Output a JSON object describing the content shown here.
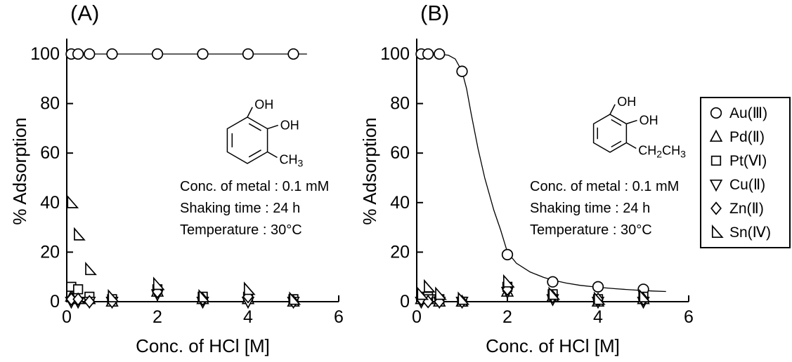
{
  "chart_data": [
    {
      "type": "scatter",
      "panel_label": "(A)",
      "xlabel": "Conc. of HCl [M]",
      "ylabel": "% Adsorption",
      "xlim": [
        0,
        6
      ],
      "ylim": [
        0,
        100
      ],
      "xticks": [
        0,
        2,
        4,
        6
      ],
      "yticks": [
        0,
        20,
        40,
        60,
        80,
        100
      ],
      "grid": false,
      "legend_position": "outside-right",
      "annotations": [
        "Conc. of metal : 0.1 mM",
        "Shaking time : 24 h",
        "Temperature : 30°C"
      ],
      "structure": {
        "substituents": [
          "OH",
          "OH",
          "CH3"
        ]
      },
      "x": [
        0.1,
        0.25,
        0.5,
        1,
        2,
        3,
        4,
        5
      ],
      "series": [
        {
          "name": "Au(Ⅲ)",
          "marker": "circle",
          "y": [
            100,
            100,
            100,
            100,
            100,
            100,
            100,
            100
          ],
          "fit_line": {
            "x": [
              0,
              5.3
            ],
            "y": [
              100,
              100
            ]
          }
        },
        {
          "name": "Pd(Ⅱ)",
          "marker": "triangle-up",
          "y": [
            2,
            1,
            1,
            0,
            4,
            1,
            1,
            0
          ]
        },
        {
          "name": "Pt(Ⅵ)",
          "marker": "square",
          "y": [
            6,
            5,
            2,
            1,
            5,
            2,
            2,
            1
          ]
        },
        {
          "name": "Cu(Ⅱ)",
          "marker": "triangle-down",
          "y": [
            0,
            0,
            0,
            0,
            3,
            0,
            0,
            0
          ]
        },
        {
          "name": "Zn(Ⅱ)",
          "marker": "diamond",
          "y": [
            1,
            1,
            0,
            0,
            4,
            1,
            2,
            0
          ]
        },
        {
          "name": "Sn(Ⅳ)",
          "marker": "triangle-right",
          "y": [
            40,
            27,
            13,
            2,
            7,
            2,
            5,
            1
          ]
        }
      ]
    },
    {
      "type": "scatter",
      "panel_label": "(B)",
      "xlabel": "Conc. of HCl [M]",
      "ylabel": "% Adsorption",
      "xlim": [
        0,
        6
      ],
      "ylim": [
        0,
        100
      ],
      "xticks": [
        0,
        2,
        4,
        6
      ],
      "yticks": [
        0,
        20,
        40,
        60,
        80,
        100
      ],
      "grid": false,
      "legend_position": "outside-right",
      "annotations": [
        "Conc. of metal : 0.1 mM",
        "Shaking time : 24 h",
        "Temperature : 30°C"
      ],
      "structure": {
        "substituents": [
          "OH",
          "OH",
          "CH2CH3"
        ]
      },
      "x": [
        0.1,
        0.25,
        0.5,
        1,
        2,
        3,
        4,
        5
      ],
      "series": [
        {
          "name": "Au(Ⅲ)",
          "marker": "circle",
          "y": [
            100,
            100,
            100,
            93,
            19,
            8,
            6,
            5
          ],
          "fit_line": {
            "x": [
              0,
              0.3,
              0.5,
              0.7,
              0.85,
              1.0,
              1.1,
              1.2,
              1.35,
              1.5,
              1.7,
              1.85,
              2.0,
              2.2,
              2.5,
              2.8,
              3.0,
              3.3,
              3.6,
              4.0,
              4.4,
              4.8,
              5.2,
              5.5
            ],
            "y": [
              100,
              100,
              100,
              99.5,
              98,
              93,
              86,
              76,
              62,
              50,
              37,
              29,
              20,
              15.5,
              12,
              9.8,
              8.7,
              7.5,
              6.6,
              5.8,
              5.2,
              4.7,
              4.3,
              4.1
            ]
          }
        },
        {
          "name": "Pd(Ⅱ)",
          "marker": "triangle-up",
          "y": [
            1,
            1,
            0,
            0,
            4,
            2,
            0,
            1
          ]
        },
        {
          "name": "Pt(Ⅵ)",
          "marker": "square",
          "y": [
            2,
            2,
            1,
            0,
            6,
            3,
            1,
            2
          ]
        },
        {
          "name": "Cu(Ⅱ)",
          "marker": "triangle-down",
          "y": [
            0,
            1,
            0,
            0,
            4,
            1,
            0,
            0
          ]
        },
        {
          "name": "Zn(Ⅱ)",
          "marker": "diamond",
          "y": [
            1,
            0,
            0,
            0,
            5,
            2,
            1,
            1
          ]
        },
        {
          "name": "Sn(Ⅳ)",
          "marker": "triangle-right",
          "y": [
            3,
            6,
            3,
            1,
            8,
            3,
            1,
            2
          ]
        }
      ]
    }
  ],
  "legend": {
    "items": [
      {
        "label": "Au(Ⅲ)",
        "marker": "circle"
      },
      {
        "label": "Pd(Ⅱ)",
        "marker": "triangle-up"
      },
      {
        "label": "Pt(Ⅵ)",
        "marker": "square"
      },
      {
        "label": "Cu(Ⅱ)",
        "marker": "triangle-down"
      },
      {
        "label": "Zn(Ⅱ)",
        "marker": "diamond"
      },
      {
        "label": "Sn(Ⅳ)",
        "marker": "triangle-right"
      }
    ]
  },
  "colors": {
    "foreground": "#000000",
    "background": "#ffffff",
    "marker_fill": "#ffffff"
  }
}
